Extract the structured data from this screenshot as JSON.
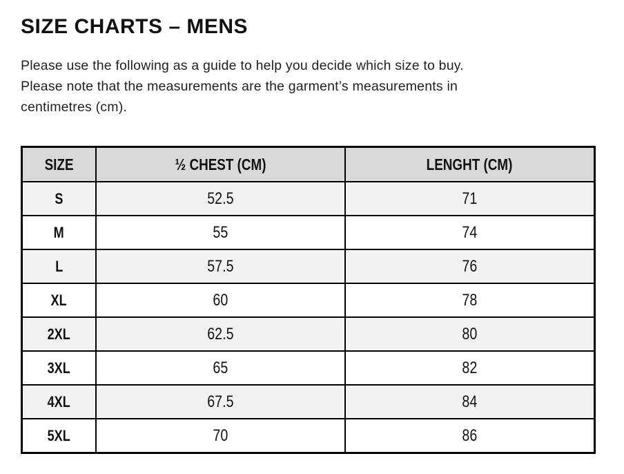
{
  "page": {
    "title": "SIZE CHARTS – MENS"
  },
  "intro": {
    "lines": [
      "Please use the following as a guide to help you decide which size to buy.",
      "Please note that the measurements are the garment’s measurements in",
      "centimetres (cm)."
    ]
  },
  "size_table": {
    "columns": [
      "SIZE",
      "½ CHEST (CM)",
      "LENGHT (CM)"
    ],
    "rows": [
      {
        "size": "S",
        "half_chest_cm": "52.5",
        "length_cm": "71"
      },
      {
        "size": "M",
        "half_chest_cm": "55",
        "length_cm": "74"
      },
      {
        "size": "L",
        "half_chest_cm": "57.5",
        "length_cm": "76"
      },
      {
        "size": "XL",
        "half_chest_cm": "60",
        "length_cm": "78"
      },
      {
        "size": "2XL",
        "half_chest_cm": "62.5",
        "length_cm": "80"
      },
      {
        "size": "3XL",
        "half_chest_cm": "65",
        "length_cm": "82"
      },
      {
        "size": "4XL",
        "half_chest_cm": "67.5",
        "length_cm": "84"
      },
      {
        "size": "5XL",
        "half_chest_cm": "70",
        "length_cm": "86"
      }
    ]
  },
  "colors": {
    "header_bg": "#d9d9d9",
    "stripe_row_bg": "#f2f2f2",
    "plain_row_bg": "#ffffff",
    "border": "#000000",
    "text": "#111111"
  }
}
